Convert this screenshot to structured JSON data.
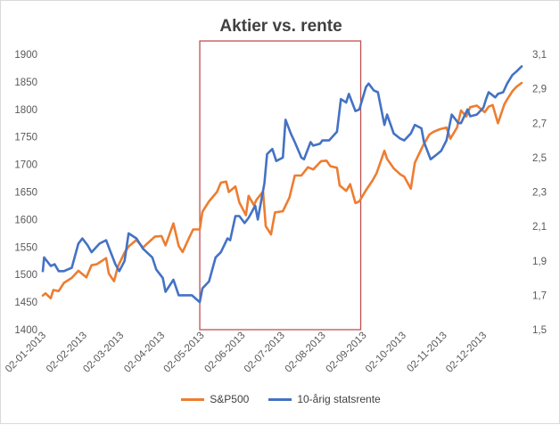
{
  "chart_data": {
    "type": "line",
    "title": "Aktier vs. rente",
    "legend_position": "bottom",
    "grid": false,
    "x_tick_labels": [
      "02-01-2013",
      "02-02-2013",
      "02-03-2013",
      "02-04-2013",
      "02-05-2013",
      "02-06-2013",
      "02-07-2013",
      "02-08-2013",
      "02-09-2013",
      "02-10-2013",
      "02-11-2013",
      "02-12-2013"
    ],
    "y_left": {
      "ticks": [
        "1400",
        "1450",
        "1500",
        "1550",
        "1600",
        "1650",
        "1700",
        "1750",
        "1800",
        "1850",
        "1900"
      ],
      "range": [
        1400,
        1900
      ]
    },
    "y_right": {
      "ticks": [
        "1,5",
        "1,7",
        "1,9",
        "2,1",
        "2,3",
        "2,5",
        "2,7",
        "2,9",
        "3,1"
      ],
      "range": [
        1.5,
        3.1
      ]
    },
    "highlight_box": {
      "x_start": "2013-05-01",
      "x_end": "2013-08-31",
      "color": "#c0504d"
    },
    "series": [
      {
        "name": "S&P500",
        "axis": "left",
        "color": "#ed7d31",
        "points": [
          [
            "2013-01-02",
            1462
          ],
          [
            "2013-01-04",
            1466
          ],
          [
            "2013-01-08",
            1457
          ],
          [
            "2013-01-10",
            1472
          ],
          [
            "2013-01-14",
            1470
          ],
          [
            "2013-01-18",
            1485
          ],
          [
            "2013-01-24",
            1494
          ],
          [
            "2013-01-29",
            1507
          ],
          [
            "2013-02-04",
            1495
          ],
          [
            "2013-02-08",
            1517
          ],
          [
            "2013-02-12",
            1519
          ],
          [
            "2013-02-19",
            1530
          ],
          [
            "2013-02-21",
            1502
          ],
          [
            "2013-02-25",
            1488
          ],
          [
            "2013-02-28",
            1515
          ],
          [
            "2013-03-05",
            1540
          ],
          [
            "2013-03-08",
            1551
          ],
          [
            "2013-03-14",
            1563
          ],
          [
            "2013-03-19",
            1549
          ],
          [
            "2013-03-22",
            1556
          ],
          [
            "2013-03-28",
            1569
          ],
          [
            "2013-04-02",
            1570
          ],
          [
            "2013-04-05",
            1553
          ],
          [
            "2013-04-11",
            1593
          ],
          [
            "2013-04-15",
            1552
          ],
          [
            "2013-04-18",
            1541
          ],
          [
            "2013-04-22",
            1562
          ],
          [
            "2013-04-26",
            1582
          ],
          [
            "2013-05-01",
            1582
          ],
          [
            "2013-05-03",
            1614
          ],
          [
            "2013-05-08",
            1633
          ],
          [
            "2013-05-14",
            1650
          ],
          [
            "2013-05-17",
            1667
          ],
          [
            "2013-05-21",
            1669
          ],
          [
            "2013-05-23",
            1650
          ],
          [
            "2013-05-28",
            1660
          ],
          [
            "2013-05-31",
            1631
          ],
          [
            "2013-06-05",
            1608
          ],
          [
            "2013-06-07",
            1643
          ],
          [
            "2013-06-11",
            1626
          ],
          [
            "2013-06-13",
            1636
          ],
          [
            "2013-06-18",
            1651
          ],
          [
            "2013-06-20",
            1588
          ],
          [
            "2013-06-24",
            1573
          ],
          [
            "2013-06-27",
            1613
          ],
          [
            "2013-07-03",
            1615
          ],
          [
            "2013-07-08",
            1640
          ],
          [
            "2013-07-12",
            1680
          ],
          [
            "2013-07-17",
            1680
          ],
          [
            "2013-07-22",
            1695
          ],
          [
            "2013-07-26",
            1691
          ],
          [
            "2013-08-01",
            1706
          ],
          [
            "2013-08-05",
            1707
          ],
          [
            "2013-08-08",
            1697
          ],
          [
            "2013-08-13",
            1694
          ],
          [
            "2013-08-15",
            1662
          ],
          [
            "2013-08-20",
            1652
          ],
          [
            "2013-08-23",
            1664
          ],
          [
            "2013-08-27",
            1630
          ],
          [
            "2013-08-30",
            1633
          ],
          [
            "2013-09-04",
            1653
          ],
          [
            "2013-09-09",
            1671
          ],
          [
            "2013-09-12",
            1684
          ],
          [
            "2013-09-18",
            1725
          ],
          [
            "2013-09-20",
            1710
          ],
          [
            "2013-09-25",
            1693
          ],
          [
            "2013-09-30",
            1682
          ],
          [
            "2013-10-03",
            1678
          ],
          [
            "2013-10-08",
            1656
          ],
          [
            "2013-10-11",
            1703
          ],
          [
            "2013-10-17",
            1733
          ],
          [
            "2013-10-22",
            1754
          ],
          [
            "2013-10-25",
            1759
          ],
          [
            "2013-10-30",
            1764
          ],
          [
            "2013-11-04",
            1767
          ],
          [
            "2013-11-07",
            1747
          ],
          [
            "2013-11-12",
            1767
          ],
          [
            "2013-11-15",
            1798
          ],
          [
            "2013-11-19",
            1787
          ],
          [
            "2013-11-22",
            1804
          ],
          [
            "2013-11-27",
            1807
          ],
          [
            "2013-12-03",
            1795
          ],
          [
            "2013-12-06",
            1805
          ],
          [
            "2013-12-09",
            1808
          ],
          [
            "2013-12-13",
            1775
          ],
          [
            "2013-12-18",
            1810
          ],
          [
            "2013-12-20",
            1818
          ],
          [
            "2013-12-24",
            1833
          ],
          [
            "2013-12-27",
            1841
          ],
          [
            "2013-12-31",
            1848
          ]
        ]
      },
      {
        "name": "10-årig statsrente",
        "axis": "right",
        "color": "#4472c4",
        "points": [
          [
            "2013-01-02",
            1.84
          ],
          [
            "2013-01-03",
            1.92
          ],
          [
            "2013-01-08",
            1.87
          ],
          [
            "2013-01-11",
            1.88
          ],
          [
            "2013-01-14",
            1.84
          ],
          [
            "2013-01-18",
            1.84
          ],
          [
            "2013-01-24",
            1.86
          ],
          [
            "2013-01-29",
            2.0
          ],
          [
            "2013-02-01",
            2.03
          ],
          [
            "2013-02-05",
            1.99
          ],
          [
            "2013-02-08",
            1.95
          ],
          [
            "2013-02-14",
            2.0
          ],
          [
            "2013-02-19",
            2.02
          ],
          [
            "2013-02-22",
            1.96
          ],
          [
            "2013-02-26",
            1.88
          ],
          [
            "2013-03-01",
            1.84
          ],
          [
            "2013-03-05",
            1.9
          ],
          [
            "2013-03-08",
            2.06
          ],
          [
            "2013-03-14",
            2.03
          ],
          [
            "2013-03-19",
            1.97
          ],
          [
            "2013-03-26",
            1.92
          ],
          [
            "2013-03-29",
            1.85
          ],
          [
            "2013-04-03",
            1.8
          ],
          [
            "2013-04-05",
            1.72
          ],
          [
            "2013-04-11",
            1.79
          ],
          [
            "2013-04-15",
            1.7
          ],
          [
            "2013-04-19",
            1.7
          ],
          [
            "2013-04-25",
            1.7
          ],
          [
            "2013-05-01",
            1.66
          ],
          [
            "2013-05-03",
            1.74
          ],
          [
            "2013-05-08",
            1.78
          ],
          [
            "2013-05-13",
            1.92
          ],
          [
            "2013-05-17",
            1.95
          ],
          [
            "2013-05-22",
            2.03
          ],
          [
            "2013-05-24",
            2.02
          ],
          [
            "2013-05-28",
            2.16
          ],
          [
            "2013-05-31",
            2.16
          ],
          [
            "2013-06-04",
            2.12
          ],
          [
            "2013-06-07",
            2.15
          ],
          [
            "2013-06-12",
            2.22
          ],
          [
            "2013-06-14",
            2.14
          ],
          [
            "2013-06-19",
            2.35
          ],
          [
            "2013-06-21",
            2.52
          ],
          [
            "2013-06-25",
            2.55
          ],
          [
            "2013-06-28",
            2.48
          ],
          [
            "2013-07-03",
            2.5
          ],
          [
            "2013-07-05",
            2.72
          ],
          [
            "2013-07-09",
            2.64
          ],
          [
            "2013-07-12",
            2.59
          ],
          [
            "2013-07-17",
            2.5
          ],
          [
            "2013-07-19",
            2.49
          ],
          [
            "2013-07-24",
            2.59
          ],
          [
            "2013-07-26",
            2.57
          ],
          [
            "2013-07-31",
            2.58
          ],
          [
            "2013-08-02",
            2.6
          ],
          [
            "2013-08-07",
            2.6
          ],
          [
            "2013-08-13",
            2.65
          ],
          [
            "2013-08-16",
            2.84
          ],
          [
            "2013-08-20",
            2.82
          ],
          [
            "2013-08-22",
            2.87
          ],
          [
            "2013-08-27",
            2.77
          ],
          [
            "2013-08-30",
            2.78
          ],
          [
            "2013-09-04",
            2.91
          ],
          [
            "2013-09-06",
            2.93
          ],
          [
            "2013-09-10",
            2.89
          ],
          [
            "2013-09-13",
            2.88
          ],
          [
            "2013-09-18",
            2.69
          ],
          [
            "2013-09-20",
            2.75
          ],
          [
            "2013-09-25",
            2.64
          ],
          [
            "2013-09-30",
            2.61
          ],
          [
            "2013-10-03",
            2.6
          ],
          [
            "2013-10-08",
            2.64
          ],
          [
            "2013-10-11",
            2.69
          ],
          [
            "2013-10-16",
            2.67
          ],
          [
            "2013-10-18",
            2.59
          ],
          [
            "2013-10-23",
            2.49
          ],
          [
            "2013-10-28",
            2.52
          ],
          [
            "2013-10-31",
            2.54
          ],
          [
            "2013-11-04",
            2.6
          ],
          [
            "2013-11-08",
            2.75
          ],
          [
            "2013-11-13",
            2.7
          ],
          [
            "2013-11-15",
            2.7
          ],
          [
            "2013-11-20",
            2.78
          ],
          [
            "2013-11-22",
            2.74
          ],
          [
            "2013-11-27",
            2.75
          ],
          [
            "2013-12-02",
            2.79
          ],
          [
            "2013-12-04",
            2.84
          ],
          [
            "2013-12-06",
            2.88
          ],
          [
            "2013-12-11",
            2.85
          ],
          [
            "2013-12-13",
            2.87
          ],
          [
            "2013-12-17",
            2.88
          ],
          [
            "2013-12-20",
            2.93
          ],
          [
            "2013-12-24",
            2.98
          ],
          [
            "2013-12-27",
            3.0
          ],
          [
            "2013-12-31",
            3.03
          ]
        ]
      }
    ]
  }
}
